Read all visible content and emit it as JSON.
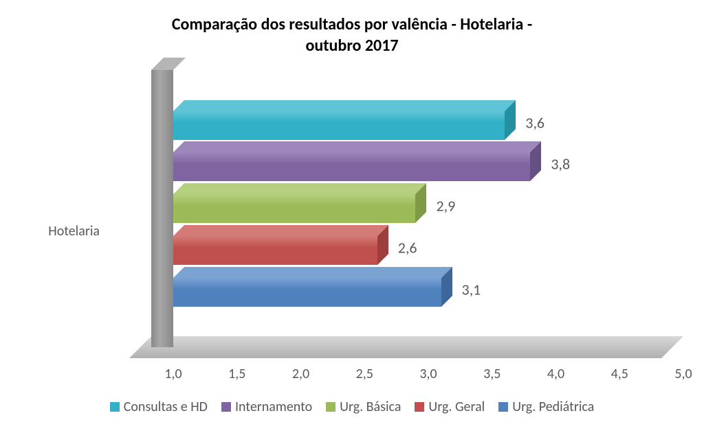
{
  "chart": {
    "title_line1": "Comparação dos resultados por valência - Hotelaria -",
    "title_line2": "outubro 2017",
    "title_fontsize": 24,
    "title_color": "#000000",
    "category_label": "Hotelaria",
    "label_fontsize": 20,
    "tick_fontsize": 20,
    "legend_fontsize": 20,
    "value_fontsize": 22,
    "background_color": "#ffffff",
    "axis_text_color": "#595959",
    "xaxis": {
      "min": 1.0,
      "max": 5.0,
      "step": 0.5,
      "ticks": [
        "1,0",
        "1,5",
        "2,0",
        "2,5",
        "3,0",
        "3,5",
        "4,0",
        "4,5",
        "5,0"
      ]
    },
    "series": [
      {
        "name": "Consultas e HD",
        "value": 3.6,
        "label": "3,6",
        "color": "#31b0c7",
        "color_top": "#5fc5d6",
        "color_side": "#2690a3"
      },
      {
        "name": "Internamento",
        "value": 3.8,
        "label": "3,8",
        "color": "#8064a2",
        "color_top": "#9e87bb",
        "color_side": "#655082"
      },
      {
        "name": "Urg. Básica",
        "value": 2.9,
        "label": "2,9",
        "color": "#9bbb59",
        "color_top": "#b5d07e",
        "color_side": "#7e9a44"
      },
      {
        "name": "Urg. Geral",
        "value": 2.6,
        "label": "2,6",
        "color": "#c0504d",
        "color_top": "#d47a77",
        "color_side": "#9c3f3c"
      },
      {
        "name": "Urg. Pediátrica",
        "value": 3.1,
        "label": "3,1",
        "color": "#4f81bd",
        "color_top": "#7aa3d4",
        "color_side": "#3d669a"
      }
    ]
  }
}
